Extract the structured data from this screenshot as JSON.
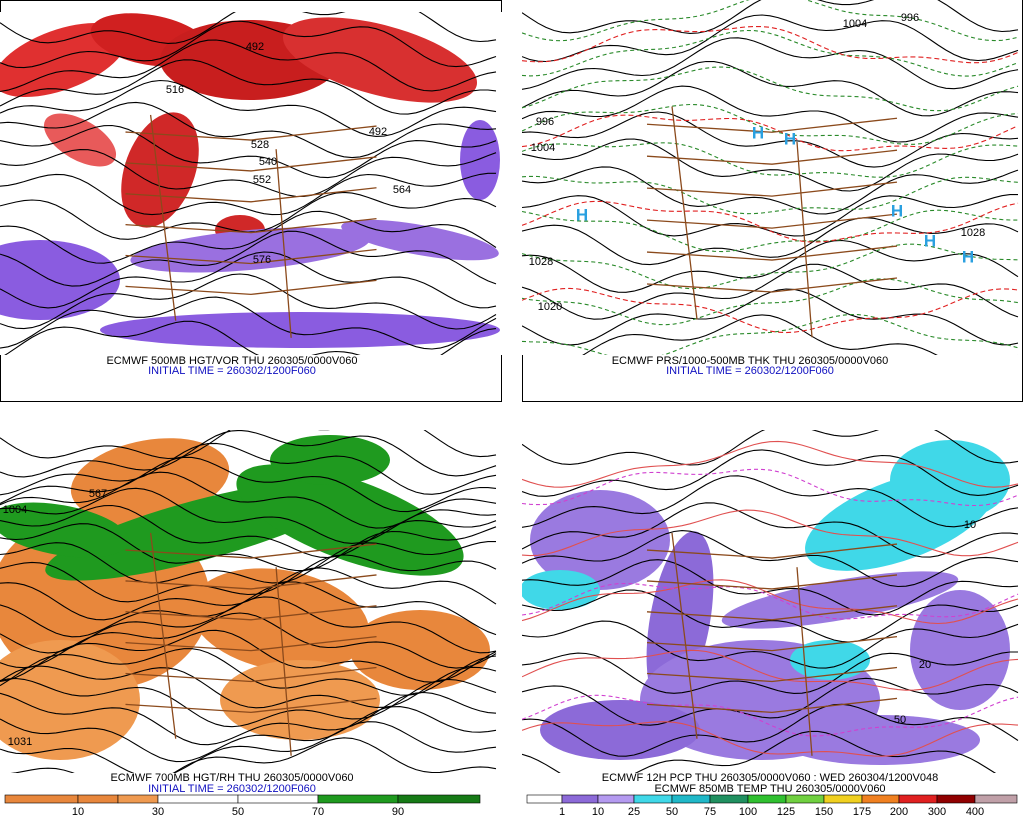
{
  "panels": [
    {
      "caption": [
        "ECMWF 500MB HGT/VOR THU 260305/0000V060",
        "INITIAL TIME = 260302/1200F060"
      ],
      "labels": [
        "492",
        "516",
        "528",
        "540",
        "552",
        "564",
        "576",
        "492"
      ]
    },
    {
      "caption": [
        "ECMWF PRS/1000-500MB THK THU 260305/0000V060",
        "INITIAL TIME = 260302/1200F060"
      ],
      "labels": [
        "1004",
        "996",
        "996",
        "1004",
        "1028",
        "1020",
        "1028",
        "H",
        "H",
        "H",
        "H",
        "H",
        "H"
      ]
    },
    {
      "caption": [
        "ECMWF 700MB HGT/RH THU 260305/0000V060",
        "INITIAL TIME = 260302/1200F060"
      ],
      "labels": [
        "567",
        "1004",
        "1031"
      ]
    },
    {
      "caption": [
        "ECMWF 12H PCP THU 260305/0000V060 : WED 260304/1200V048",
        "ECMWF 850MB TEMP THU 260305/0000V060"
      ],
      "labels": [
        "10",
        "20",
        "50"
      ]
    }
  ],
  "colorbars": [
    {
      "labels": [
        "10",
        "30",
        "50",
        "70",
        "90"
      ]
    },
    {
      "labels": [
        "1",
        "10",
        "25",
        "50",
        "75",
        "100",
        "125",
        "150",
        "175",
        "200",
        "300",
        "400"
      ]
    }
  ]
}
